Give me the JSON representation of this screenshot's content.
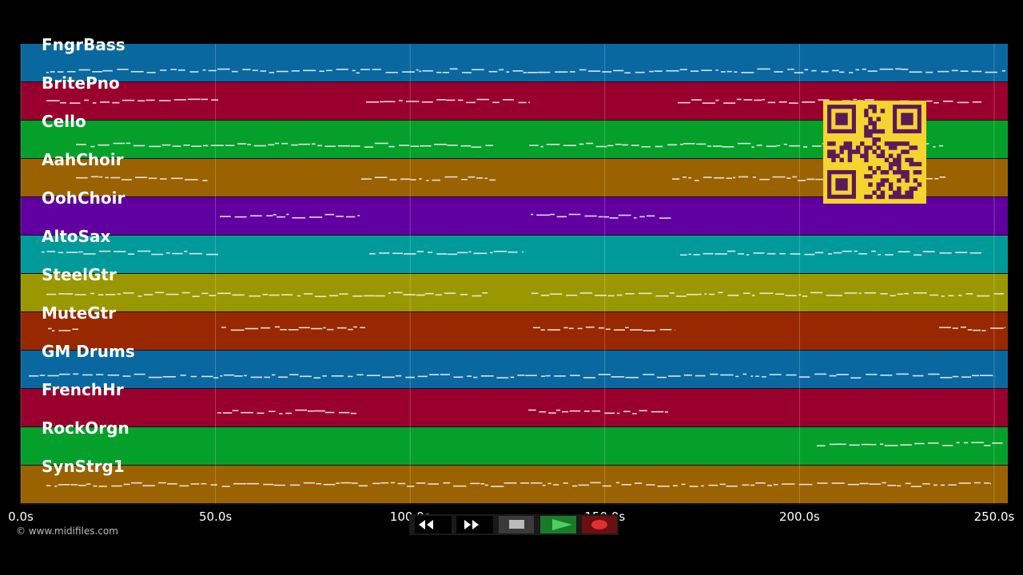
{
  "tracks": [
    "FngrBass",
    "BritePno",
    "Cello",
    "AahChoir",
    "OohChoir",
    "AltoSax",
    "SteelGtr",
    "MuteGtr",
    "GM Drums",
    "FrenchHr",
    "RockOrgn",
    "SynStrg1"
  ],
  "timeline": {
    "range": [
      0,
      253.5
    ],
    "ticks": [
      {
        "value": 0,
        "label": "0.0s"
      },
      {
        "value": 50,
        "label": "50.0s"
      },
      {
        "value": 100,
        "label": "100.0s"
      },
      {
        "value": 150,
        "label": "150.0s"
      },
      {
        "value": 200,
        "label": "200.0s"
      },
      {
        "value": 250,
        "label": "250.0s"
      }
    ]
  },
  "footer": {
    "copyright": "© www.midifiles.com"
  }
}
